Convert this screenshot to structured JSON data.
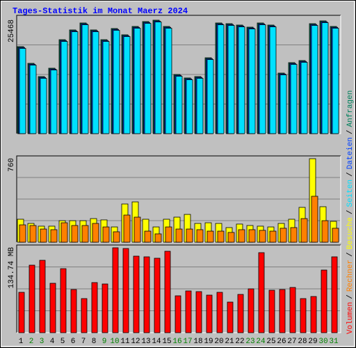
{
  "chart_data": [
    {
      "type": "bar",
      "title": "Tages-Statistik im Monat Maerz 2024",
      "ylim": [
        0,
        25468
      ],
      "yticks": [
        25468
      ],
      "series": [
        {
          "name": "Anfragen",
          "color": "#00805c",
          "values": [
            19531,
            15781,
            12813,
            14688,
            21094,
            23281,
            24844,
            23281,
            21094,
            23594,
            22188,
            24063,
            25156,
            25468,
            24063,
            13281,
            12500,
            12813,
            17031,
            24844,
            24688,
            24375,
            23906,
            24844,
            24375,
            13594,
            15938,
            16406,
            24688,
            25313,
            24063
          ]
        },
        {
          "name": "Dateien",
          "color": "#0040ff",
          "values": [
            19331,
            15581,
            12613,
            14488,
            20894,
            23081,
            24644,
            23081,
            20894,
            23394,
            21988,
            23863,
            24956,
            25268,
            23863,
            13081,
            12300,
            12613,
            16831,
            24644,
            24488,
            24175,
            23706,
            24644,
            24175,
            13394,
            15738,
            16206,
            24488,
            25113,
            23863
          ]
        },
        {
          "name": "Seiten",
          "color": "#00e0ff",
          "values": [
            19131,
            15381,
            12413,
            14288,
            20694,
            22881,
            24444,
            22881,
            20694,
            23194,
            21788,
            23663,
            24756,
            25068,
            23663,
            12881,
            12100,
            12413,
            16631,
            24444,
            24288,
            23975,
            23506,
            24444,
            23975,
            13194,
            15538,
            16006,
            24288,
            24913,
            23663
          ]
        }
      ]
    },
    {
      "type": "bar",
      "ylim": [
        0,
        760
      ],
      "yticks": [
        760
      ],
      "series": [
        {
          "name": "Besuche",
          "color": "#ffff00",
          "values": [
            209,
            171,
            146,
            146,
            196,
            196,
            196,
            215,
            203,
            139,
            348,
            367,
            209,
            139,
            209,
            228,
            253,
            171,
            177,
            171,
            133,
            165,
            152,
            146,
            139,
            171,
            209,
            317,
            760,
            323,
            190
          ]
        },
        {
          "name": "Rechner",
          "color": "#ff8000",
          "values": [
            158,
            152,
            120,
            114,
            177,
            152,
            152,
            171,
            139,
            95,
            247,
            228,
            101,
            76,
            139,
            120,
            120,
            114,
            101,
            101,
            89,
            114,
            114,
            108,
            101,
            127,
            133,
            215,
            418,
            196,
            127
          ]
        }
      ]
    },
    {
      "type": "bar",
      "ylim": [
        0,
        134.74
      ],
      "yticks": [
        {
          "value": 134.74,
          "label": "134.74 MB"
        }
      ],
      "series": [
        {
          "name": "Volumen",
          "color": "#ff0000",
          "values": [
            64.06,
            107.13,
            114.86,
            78.41,
            101.61,
            68.47,
            54.12,
            79.52,
            77.31,
            134.74,
            133.6,
            121.48,
            120.38,
            118.17,
            129.21,
            58.53,
            66.26,
            65.16,
            59.64,
            64.06,
            48.59,
            60.74,
            69.58,
            127.0,
            67.37,
            68.47,
            71.79,
            54.12,
            57.43,
            99.4,
            120.38
          ]
        }
      ],
      "categories": [
        "1",
        "2",
        "3",
        "4",
        "5",
        "6",
        "7",
        "8",
        "9",
        "10",
        "11",
        "12",
        "13",
        "14",
        "15",
        "16",
        "17",
        "18",
        "19",
        "20",
        "21",
        "22",
        "23",
        "24",
        "25",
        "26",
        "27",
        "28",
        "29",
        "30",
        "31"
      ],
      "category_colors": [
        "#000000",
        "#008000",
        "#008000",
        "#000000",
        "#000000",
        "#000000",
        "#000000",
        "#000000",
        "#008000",
        "#008000",
        "#000000",
        "#000000",
        "#000000",
        "#000000",
        "#000000",
        "#008000",
        "#008000",
        "#000000",
        "#000000",
        "#000000",
        "#000000",
        "#000000",
        "#008000",
        "#008000",
        "#000000",
        "#000000",
        "#000000",
        "#000000",
        "#000000",
        "#008000",
        "#008000"
      ]
    },
    {
      "legend_separator": "/"
    }
  ]
}
